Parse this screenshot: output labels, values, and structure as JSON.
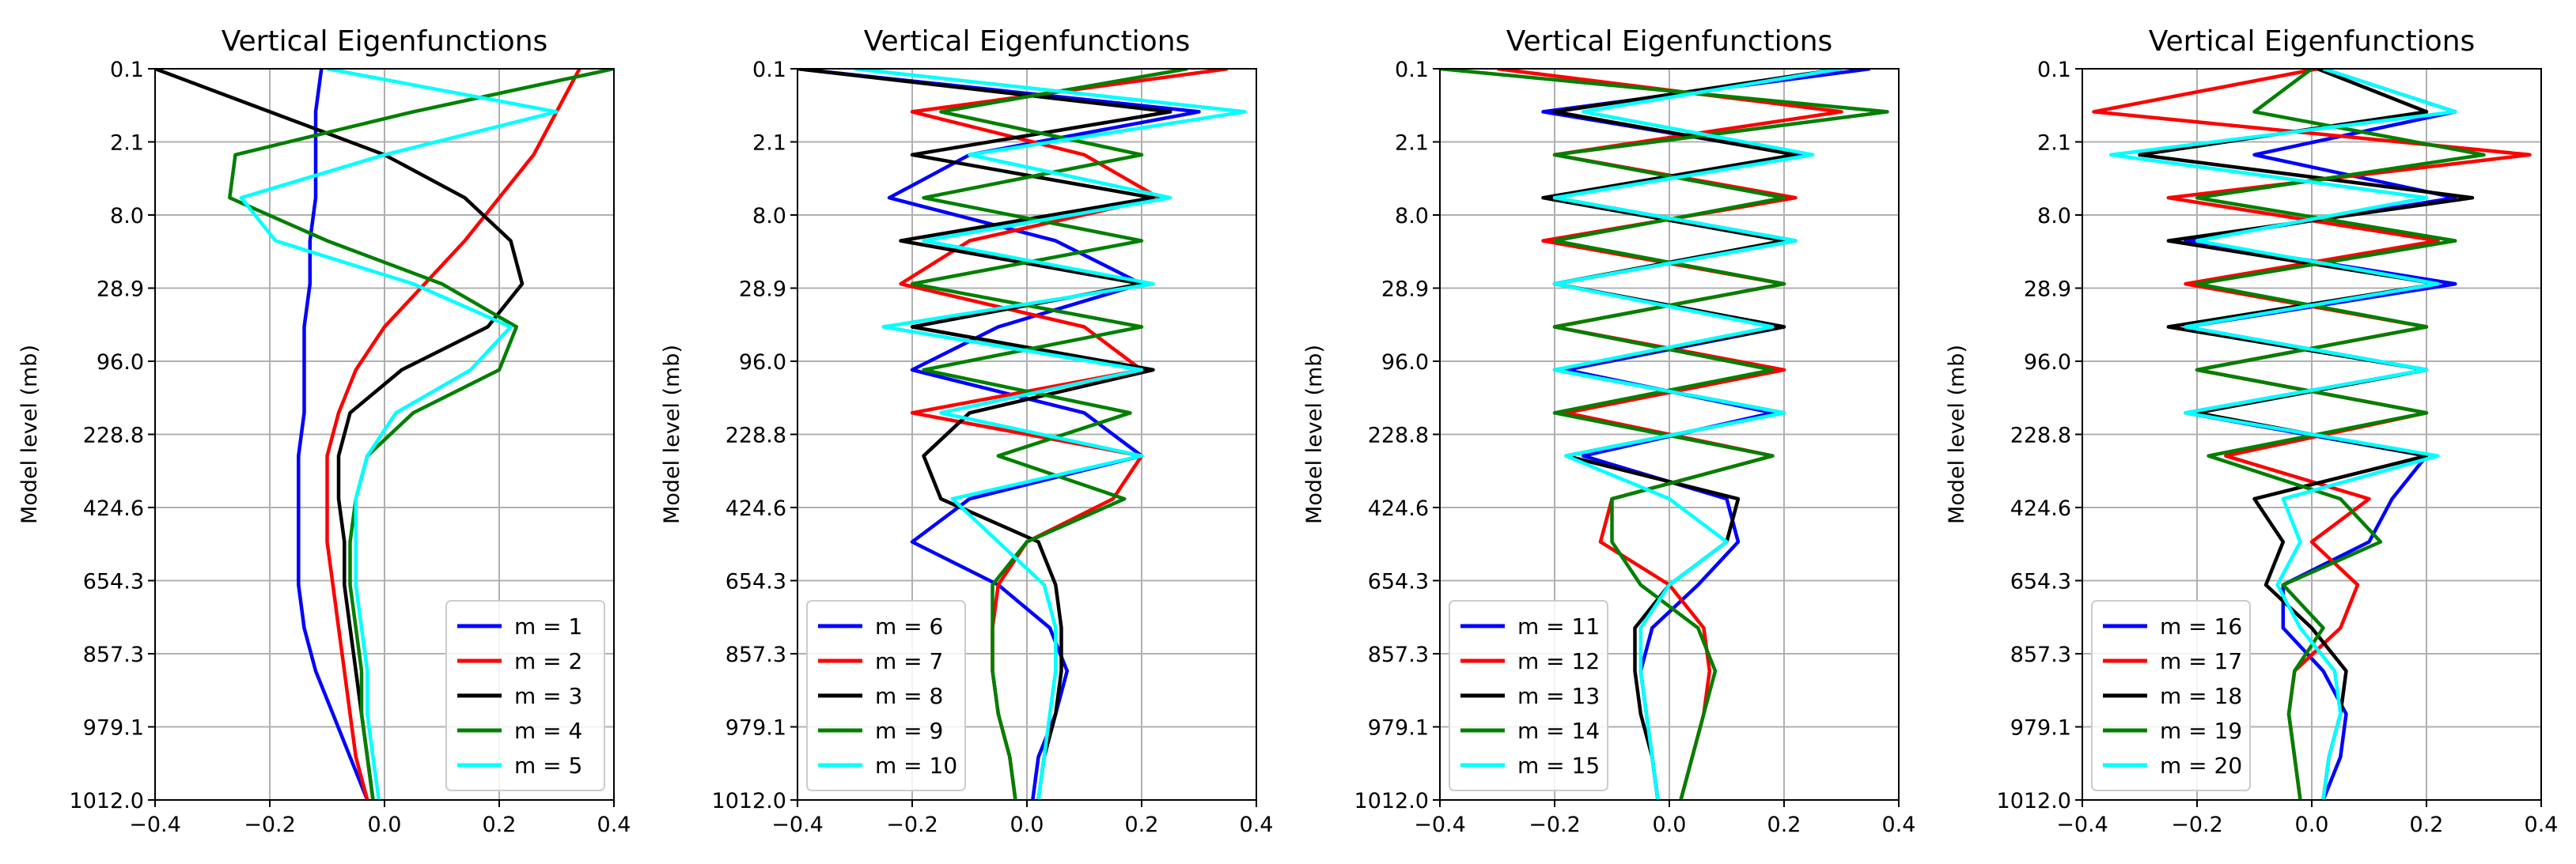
{
  "chart_data": [
    {
      "type": "line",
      "title": "Vertical Eigenfunctions",
      "ylabel": "Model level (mb)",
      "xlabel": "",
      "xlim": [
        -0.4,
        0.4
      ],
      "xticks": [
        "−0.4",
        "−0.2",
        "0.0",
        "0.2",
        "0.4"
      ],
      "yticks": [
        "0.1",
        "2.1",
        "8.0",
        "28.9",
        "96.0",
        "228.8",
        "424.6",
        "654.3",
        "857.3",
        "979.1",
        "1012.0"
      ],
      "grid": true,
      "legend_position": "lower-right",
      "series": [
        {
          "name": "m = 1",
          "color": "#0000ff",
          "values": [
            -0.11,
            -0.12,
            -0.12,
            -0.12,
            -0.13,
            -0.13,
            -0.14,
            -0.14,
            -0.14,
            -0.15,
            -0.15,
            -0.15,
            -0.15,
            -0.14,
            -0.12,
            -0.09,
            -0.06,
            -0.03
          ]
        },
        {
          "name": "m = 2",
          "color": "#ff0000",
          "values": [
            0.34,
            0.3,
            0.26,
            0.2,
            0.14,
            0.07,
            0.0,
            -0.05,
            -0.08,
            -0.1,
            -0.1,
            -0.1,
            -0.09,
            -0.08,
            -0.07,
            -0.06,
            -0.05,
            -0.03
          ]
        },
        {
          "name": "m = 3",
          "color": "#000000",
          "values": [
            -0.4,
            -0.2,
            0.0,
            0.14,
            0.22,
            0.24,
            0.18,
            0.03,
            -0.06,
            -0.08,
            -0.08,
            -0.07,
            -0.07,
            -0.06,
            -0.05,
            -0.04,
            -0.03,
            -0.02
          ]
        },
        {
          "name": "m = 4",
          "color": "#007f00",
          "values": [
            0.4,
            0.05,
            -0.26,
            -0.27,
            -0.1,
            0.1,
            0.23,
            0.2,
            0.05,
            -0.03,
            -0.05,
            -0.06,
            -0.06,
            -0.05,
            -0.04,
            -0.04,
            -0.03,
            -0.02
          ]
        },
        {
          "name": "m = 5",
          "color": "#00ffff",
          "values": [
            -0.1,
            0.3,
            0.0,
            -0.25,
            -0.19,
            0.05,
            0.22,
            0.15,
            0.02,
            -0.03,
            -0.05,
            -0.05,
            -0.05,
            -0.04,
            -0.03,
            -0.03,
            -0.02,
            -0.01
          ]
        }
      ]
    },
    {
      "type": "line",
      "title": "Vertical Eigenfunctions",
      "ylabel": "Model level (mb)",
      "xlabel": "",
      "xlim": [
        -0.4,
        0.4
      ],
      "xticks": [
        "−0.4",
        "−0.2",
        "0.0",
        "0.2",
        "0.4"
      ],
      "yticks": [
        "0.1",
        "2.1",
        "8.0",
        "28.9",
        "96.0",
        "228.8",
        "424.6",
        "654.3",
        "857.3",
        "979.1",
        "1012.0"
      ],
      "grid": true,
      "legend_position": "lower-left",
      "series": [
        {
          "name": "m = 6",
          "color": "#0000ff",
          "values": [
            -0.4,
            0.3,
            -0.1,
            -0.24,
            0.05,
            0.2,
            -0.05,
            -0.2,
            0.1,
            0.2,
            -0.1,
            -0.2,
            -0.05,
            0.04,
            0.07,
            0.05,
            0.02,
            0.01
          ]
        },
        {
          "name": "m = 7",
          "color": "#ff0000",
          "values": [
            0.35,
            -0.2,
            0.1,
            0.23,
            -0.1,
            -0.22,
            0.1,
            0.2,
            -0.2,
            0.2,
            0.15,
            0.0,
            -0.05,
            -0.06,
            -0.06,
            -0.05,
            -0.03,
            -0.02
          ]
        },
        {
          "name": "m = 8",
          "color": "#000000",
          "values": [
            -0.4,
            0.25,
            -0.2,
            0.22,
            -0.22,
            0.2,
            -0.2,
            0.22,
            -0.1,
            -0.18,
            -0.15,
            0.02,
            0.05,
            0.06,
            0.06,
            0.05,
            0.03,
            0.02
          ]
        },
        {
          "name": "m = 9",
          "color": "#007f00",
          "values": [
            0.28,
            -0.15,
            0.2,
            -0.18,
            0.2,
            -0.2,
            0.2,
            -0.18,
            0.18,
            -0.05,
            0.17,
            0.0,
            -0.06,
            -0.06,
            -0.06,
            -0.05,
            -0.03,
            -0.02
          ]
        },
        {
          "name": "m = 10",
          "color": "#00ffff",
          "values": [
            -0.3,
            0.38,
            -0.1,
            0.25,
            -0.18,
            0.22,
            -0.25,
            0.2,
            -0.15,
            0.2,
            -0.13,
            -0.05,
            0.03,
            0.05,
            0.05,
            0.04,
            0.03,
            0.02
          ]
        }
      ]
    },
    {
      "type": "line",
      "title": "Vertical Eigenfunctions",
      "ylabel": "Model level (mb)",
      "xlabel": "",
      "xlim": [
        -0.4,
        0.4
      ],
      "xticks": [
        "−0.4",
        "−0.2",
        "0.0",
        "0.2",
        "0.4"
      ],
      "yticks": [
        "0.1",
        "2.1",
        "8.0",
        "28.9",
        "96.0",
        "228.8",
        "424.6",
        "654.3",
        "857.3",
        "979.1",
        "1012.0"
      ],
      "grid": true,
      "legend_position": "lower-left",
      "series": [
        {
          "name": "m = 11",
          "color": "#0000ff",
          "values": [
            0.35,
            -0.22,
            0.23,
            -0.2,
            0.22,
            -0.2,
            0.2,
            -0.18,
            0.18,
            -0.15,
            0.1,
            0.12,
            0.05,
            -0.03,
            -0.05,
            -0.04,
            -0.03,
            -0.02
          ]
        },
        {
          "name": "m = 12",
          "color": "#ff0000",
          "values": [
            -0.3,
            0.3,
            -0.2,
            0.22,
            -0.22,
            0.2,
            -0.2,
            0.2,
            -0.18,
            0.18,
            -0.1,
            -0.12,
            0.0,
            0.06,
            0.07,
            0.06,
            0.04,
            0.02
          ]
        },
        {
          "name": "m = 13",
          "color": "#000000",
          "values": [
            0.3,
            -0.2,
            0.22,
            -0.22,
            0.2,
            -0.2,
            0.2,
            -0.2,
            0.2,
            -0.18,
            0.12,
            0.1,
            0.0,
            -0.06,
            -0.06,
            -0.05,
            -0.03,
            -0.02
          ]
        },
        {
          "name": "m = 14",
          "color": "#007f00",
          "values": [
            -0.4,
            0.38,
            -0.2,
            0.2,
            -0.2,
            0.2,
            -0.2,
            0.18,
            -0.2,
            0.18,
            -0.1,
            -0.1,
            -0.05,
            0.05,
            0.08,
            0.06,
            0.04,
            0.02
          ]
        },
        {
          "name": "m = 15",
          "color": "#00ffff",
          "values": [
            0.3,
            -0.15,
            0.25,
            -0.2,
            0.22,
            -0.2,
            0.18,
            -0.2,
            0.2,
            -0.18,
            0.0,
            0.1,
            0.0,
            -0.05,
            -0.05,
            -0.04,
            -0.03,
            -0.02
          ]
        }
      ]
    },
    {
      "type": "line",
      "title": "Vertical Eigenfunctions",
      "ylabel": "Model level (mb)",
      "xlabel": "",
      "xlim": [
        -0.4,
        0.4
      ],
      "xticks": [
        "−0.4",
        "−0.2",
        "0.0",
        "0.2",
        "0.4"
      ],
      "yticks": [
        "0.1",
        "2.1",
        "8.0",
        "28.9",
        "96.0",
        "228.8",
        "424.6",
        "654.3",
        "857.3",
        "979.1",
        "1012.0"
      ],
      "grid": true,
      "legend_position": "lower-left",
      "series": [
        {
          "name": "m = 16",
          "color": "#0000ff",
          "values": [
            0.02,
            0.25,
            -0.1,
            0.25,
            -0.22,
            0.25,
            -0.22,
            0.2,
            -0.22,
            0.2,
            0.14,
            0.1,
            -0.05,
            -0.05,
            0.02,
            0.06,
            0.05,
            0.02
          ]
        },
        {
          "name": "m = 17",
          "color": "#ff0000",
          "values": [
            0.01,
            -0.38,
            0.38,
            -0.25,
            0.22,
            -0.22,
            0.2,
            -0.2,
            0.2,
            -0.15,
            0.1,
            0.0,
            0.08,
            0.05,
            -0.03,
            -0.04,
            -0.03,
            -0.02
          ]
        },
        {
          "name": "m = 18",
          "color": "#000000",
          "values": [
            0.01,
            0.2,
            -0.3,
            0.28,
            -0.25,
            0.22,
            -0.25,
            0.2,
            -0.2,
            0.2,
            -0.1,
            -0.05,
            -0.08,
            0.0,
            0.06,
            0.05,
            0.03,
            0.02
          ]
        },
        {
          "name": "m = 19",
          "color": "#007f00",
          "values": [
            0.0,
            -0.1,
            0.3,
            -0.2,
            0.25,
            -0.2,
            0.2,
            -0.2,
            0.2,
            -0.18,
            0.05,
            0.12,
            -0.05,
            0.02,
            -0.03,
            -0.04,
            -0.03,
            -0.02
          ]
        },
        {
          "name": "m = 20",
          "color": "#00ffff",
          "values": [
            0.02,
            0.25,
            -0.35,
            0.2,
            -0.2,
            0.22,
            -0.22,
            0.2,
            -0.22,
            0.22,
            -0.05,
            -0.02,
            -0.06,
            -0.02,
            0.04,
            0.05,
            0.03,
            0.02
          ]
        }
      ]
    }
  ],
  "colors": {
    "grid": "#b0b0b0",
    "axis": "#000000",
    "legend_border": "#cccccc"
  }
}
